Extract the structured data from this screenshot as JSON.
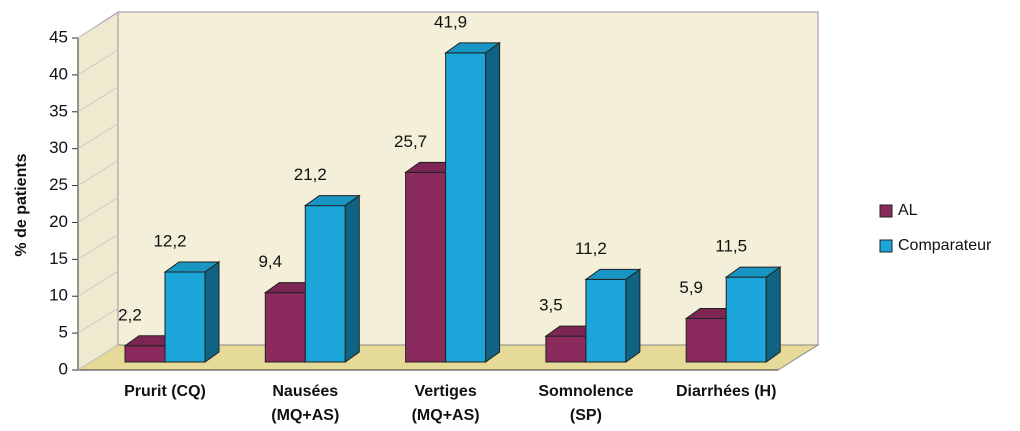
{
  "chart_data": {
    "type": "bar3d",
    "y_axis_label": "% de patients",
    "categories": [
      "Prurit (CQ)",
      "Nausées\n(MQ+AS)",
      "Vertiges\n(MQ+AS)",
      "Somnolence\n(SP)",
      "Diarrhées (H)"
    ],
    "series": [
      {
        "name": "AL",
        "color": "#8b2a5c",
        "values": [
          2.2,
          9.4,
          25.7,
          3.5,
          5.9
        ],
        "value_labels": [
          "2,2",
          "9,4",
          "25,7",
          "3,5",
          "5,9"
        ]
      },
      {
        "name": "Comparateur",
        "color": "#1ba5d8",
        "values": [
          12.2,
          21.2,
          41.9,
          11.2,
          11.5
        ],
        "value_labels": [
          "12,2",
          "21,2",
          "41,9",
          "11,2",
          "11,5"
        ]
      }
    ],
    "ylim": [
      0,
      45
    ],
    "yticks": [
      0,
      5,
      10,
      15,
      20,
      25,
      30,
      35,
      40,
      45
    ],
    "legend": "right"
  }
}
